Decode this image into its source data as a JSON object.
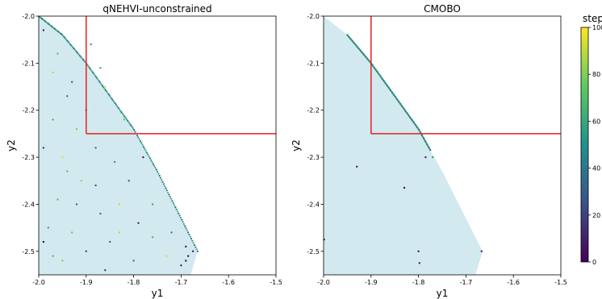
{
  "chart_data": [
    {
      "type": "scatter",
      "title": "qNEHVI-unconstrained",
      "xlabel": "y1",
      "ylabel": "y2",
      "xlim": [
        -2.0,
        -1.5
      ],
      "ylim": [
        -2.55,
        -2.0
      ],
      "xticks": [
        "-2.0",
        "-1.9",
        "-1.8",
        "-1.7",
        "-1.6",
        "-1.5"
      ],
      "yticks": [
        "-2.0",
        "-2.1",
        "-2.2",
        "-2.3",
        "-2.4",
        "-2.5"
      ],
      "feasible_region": {
        "boundary": [
          [
            -2.0,
            -2.0
          ],
          [
            -1.95,
            -2.04
          ],
          [
            -1.9,
            -2.1
          ],
          [
            -1.85,
            -2.17
          ],
          [
            -1.8,
            -2.24
          ],
          [
            -1.75,
            -2.33
          ],
          [
            -1.7,
            -2.43
          ],
          [
            -1.665,
            -2.5
          ],
          [
            -1.68,
            -2.55
          ],
          [
            -2.0,
            -2.55
          ]
        ],
        "color": "#d3e9f0"
      },
      "constraint": {
        "x": -1.9,
        "y": -2.25,
        "color": "#e8201f"
      },
      "front": {
        "x_start": -2.0,
        "x_end": -1.665,
        "color": "#2e8f8b"
      },
      "points": [
        {
          "x": -1.99,
          "y": -2.03,
          "step": 10
        },
        {
          "x": -1.96,
          "y": -2.08,
          "step": 72
        },
        {
          "x": -1.97,
          "y": -2.12,
          "step": 88
        },
        {
          "x": -1.93,
          "y": -2.14,
          "step": 30
        },
        {
          "x": -1.89,
          "y": -2.06,
          "step": 55
        },
        {
          "x": -1.87,
          "y": -2.11,
          "step": 60
        },
        {
          "x": -1.94,
          "y": -2.17,
          "step": 40
        },
        {
          "x": -1.86,
          "y": -2.15,
          "step": 92
        },
        {
          "x": -1.9,
          "y": -2.2,
          "step": 20
        },
        {
          "x": -1.97,
          "y": -2.22,
          "step": 65
        },
        {
          "x": -1.92,
          "y": -2.24,
          "step": 80
        },
        {
          "x": -1.88,
          "y": -2.28,
          "step": 35
        },
        {
          "x": -1.95,
          "y": -2.3,
          "step": 95
        },
        {
          "x": -1.99,
          "y": -2.28,
          "step": 15
        },
        {
          "x": -1.84,
          "y": -2.31,
          "step": 50
        },
        {
          "x": -1.81,
          "y": -2.35,
          "step": 25
        },
        {
          "x": -1.91,
          "y": -2.35,
          "step": 85
        },
        {
          "x": -1.96,
          "y": -2.39,
          "step": 70
        },
        {
          "x": -1.87,
          "y": -2.42,
          "step": 45
        },
        {
          "x": -1.83,
          "y": -2.4,
          "step": 90
        },
        {
          "x": -1.79,
          "y": -2.44,
          "step": 12
        },
        {
          "x": -1.93,
          "y": -2.46,
          "step": 78
        },
        {
          "x": -1.98,
          "y": -2.45,
          "step": 58
        },
        {
          "x": -1.85,
          "y": -2.48,
          "step": 33
        },
        {
          "x": -1.76,
          "y": -2.47,
          "step": 66
        },
        {
          "x": -1.9,
          "y": -2.5,
          "step": 22
        },
        {
          "x": -1.95,
          "y": -2.52,
          "step": 82
        },
        {
          "x": -1.8,
          "y": -2.52,
          "step": 48
        },
        {
          "x": -1.73,
          "y": -2.51,
          "step": 96
        },
        {
          "x": -1.86,
          "y": -2.54,
          "step": 18
        },
        {
          "x": -1.76,
          "y": -2.4,
          "step": 62
        },
        {
          "x": -1.78,
          "y": -2.3,
          "step": 8
        },
        {
          "x": -1.82,
          "y": -2.22,
          "step": 75
        },
        {
          "x": -1.72,
          "y": -2.46,
          "step": 52
        },
        {
          "x": -1.69,
          "y": -2.49,
          "step": 5
        },
        {
          "x": -1.685,
          "y": -2.51,
          "step": 3
        },
        {
          "x": -1.69,
          "y": -2.52,
          "step": 2
        },
        {
          "x": -1.7,
          "y": -2.53,
          "step": 6
        },
        {
          "x": -1.675,
          "y": -2.5,
          "step": 4
        },
        {
          "x": -1.99,
          "y": -2.48,
          "step": 1
        },
        {
          "x": -1.97,
          "y": -2.51,
          "step": 68
        },
        {
          "x": -1.92,
          "y": -2.4,
          "step": 38
        },
        {
          "x": -1.83,
          "y": -2.46,
          "step": 88
        },
        {
          "x": -1.88,
          "y": -2.36,
          "step": 28
        },
        {
          "x": -1.94,
          "y": -2.33,
          "step": 74
        }
      ]
    },
    {
      "type": "scatter",
      "title": "CMOBO",
      "xlabel": "y1",
      "ylabel": "y2",
      "xlim": [
        -2.0,
        -1.5
      ],
      "ylim": [
        -2.55,
        -2.0
      ],
      "xticks": [
        "-2.0",
        "-1.9",
        "-1.8",
        "-1.7",
        "-1.6",
        "-1.5"
      ],
      "yticks": [
        "-2.0",
        "-2.1",
        "-2.2",
        "-2.3",
        "-2.4",
        "-2.5"
      ],
      "feasible_region": {
        "boundary": [
          [
            -2.0,
            -2.0
          ],
          [
            -1.95,
            -2.04
          ],
          [
            -1.9,
            -2.1
          ],
          [
            -1.85,
            -2.17
          ],
          [
            -1.8,
            -2.24
          ],
          [
            -1.75,
            -2.33
          ],
          [
            -1.7,
            -2.43
          ],
          [
            -1.665,
            -2.5
          ],
          [
            -1.68,
            -2.55
          ],
          [
            -2.0,
            -2.55
          ]
        ],
        "color": "#d3e9f0"
      },
      "constraint": {
        "x": -1.9,
        "y": -2.25,
        "color": "#e8201f"
      },
      "front": {
        "x_start": -1.95,
        "x_end": -1.775,
        "color": "#2e8f8b"
      },
      "points": [
        {
          "x": -1.999,
          "y": -2.475,
          "step": 2
        },
        {
          "x": -1.93,
          "y": -2.32,
          "step": 4
        },
        {
          "x": -1.83,
          "y": -2.365,
          "step": 5
        },
        {
          "x": -1.785,
          "y": -2.3,
          "step": 12
        },
        {
          "x": -1.8,
          "y": -2.5,
          "step": 3
        },
        {
          "x": -1.798,
          "y": -2.525,
          "step": 6
        },
        {
          "x": -1.667,
          "y": -2.5,
          "step": 8
        },
        {
          "x": -1.77,
          "y": -2.3,
          "step": 55
        }
      ]
    }
  ],
  "colorbar": {
    "label": "step",
    "ticks": [
      "0",
      "20",
      "40",
      "60",
      "80",
      "100"
    ],
    "range": [
      0,
      100
    ]
  }
}
